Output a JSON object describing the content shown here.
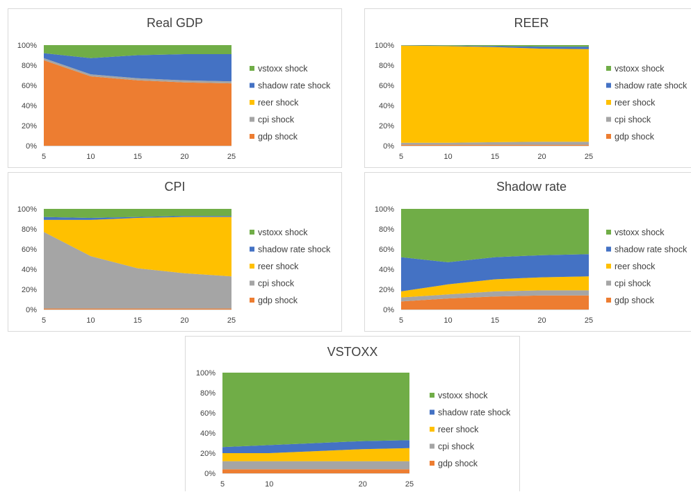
{
  "legend_order": [
    "vstoxx shock",
    "shadow rate shock",
    "reer shock",
    "cpi shock",
    "gdp shock"
  ],
  "colors": {
    "gdp shock": "#ed7d31",
    "cpi shock": "#a5a5a5",
    "reer shock": "#ffc000",
    "shadow rate shock": "#4472c4",
    "vstoxx shock": "#70ad47"
  },
  "chart_data": [
    {
      "type": "area",
      "stacked": "percent",
      "title": "Real GDP",
      "x": [
        5,
        10,
        15,
        20,
        25
      ],
      "xticks": [
        "5",
        "10",
        "15",
        "20",
        "25"
      ],
      "yticks": [
        "0%",
        "20%",
        "40%",
        "60%",
        "80%",
        "100%"
      ],
      "ylim": [
        0,
        100
      ],
      "legend_position": "right",
      "series": [
        {
          "name": "gdp shock",
          "values": [
            85,
            69,
            65,
            63,
            62
          ]
        },
        {
          "name": "cpi shock",
          "values": [
            2,
            2,
            2,
            2,
            2
          ]
        },
        {
          "name": "reer shock",
          "values": [
            0,
            0,
            0,
            0,
            0
          ]
        },
        {
          "name": "shadow rate shock",
          "values": [
            5,
            16,
            23,
            26,
            27
          ]
        },
        {
          "name": "vstoxx shock",
          "values": [
            8,
            13,
            10,
            9,
            9
          ]
        }
      ]
    },
    {
      "type": "area",
      "stacked": "percent",
      "title": "REER",
      "x": [
        5,
        10,
        15,
        20,
        25
      ],
      "xticks": [
        "5",
        "10",
        "15",
        "20",
        "25"
      ],
      "yticks": [
        "0%",
        "20%",
        "40%",
        "60%",
        "80%",
        "100%"
      ],
      "ylim": [
        0,
        100
      ],
      "legend_position": "right",
      "series": [
        {
          "name": "gdp shock",
          "values": [
            1,
            1,
            1,
            1,
            1
          ]
        },
        {
          "name": "cpi shock",
          "values": [
            2,
            2,
            2.5,
            3,
            3
          ]
        },
        {
          "name": "reer shock",
          "values": [
            96.5,
            96,
            94.5,
            92.5,
            92
          ]
        },
        {
          "name": "shadow rate shock",
          "values": [
            0.3,
            0.5,
            1,
            2,
            2.5
          ]
        },
        {
          "name": "vstoxx shock",
          "values": [
            0.2,
            0.5,
            1,
            1.5,
            1.5
          ]
        }
      ]
    },
    {
      "type": "area",
      "stacked": "percent",
      "title": "CPI",
      "x": [
        5,
        10,
        15,
        20,
        25
      ],
      "xticks": [
        "5",
        "10",
        "15",
        "20",
        "25"
      ],
      "yticks": [
        "0%",
        "20%",
        "40%",
        "60%",
        "80%",
        "100%"
      ],
      "ylim": [
        0,
        100
      ],
      "legend_position": "right",
      "series": [
        {
          "name": "gdp shock",
          "values": [
            1,
            1,
            1,
            1,
            1
          ]
        },
        {
          "name": "cpi shock",
          "values": [
            76,
            52,
            40,
            35,
            32
          ]
        },
        {
          "name": "reer shock",
          "values": [
            12,
            36,
            50,
            56,
            59
          ]
        },
        {
          "name": "shadow rate shock",
          "values": [
            3,
            2,
            1,
            1,
            1
          ]
        },
        {
          "name": "vstoxx shock",
          "values": [
            8,
            9,
            8,
            7,
            7
          ]
        }
      ]
    },
    {
      "type": "area",
      "stacked": "percent",
      "title": "Shadow rate",
      "x": [
        5,
        10,
        15,
        20,
        25
      ],
      "xticks": [
        "5",
        "10",
        "15",
        "20",
        "25"
      ],
      "yticks": [
        "0%",
        "20%",
        "40%",
        "60%",
        "80%",
        "100%"
      ],
      "ylim": [
        0,
        100
      ],
      "legend_position": "right",
      "series": [
        {
          "name": "gdp shock",
          "values": [
            8,
            11,
            13,
            14,
            14
          ]
        },
        {
          "name": "cpi shock",
          "values": [
            4,
            4,
            5,
            5,
            5
          ]
        },
        {
          "name": "reer shock",
          "values": [
            6,
            10,
            12,
            13,
            14
          ]
        },
        {
          "name": "shadow rate shock",
          "values": [
            34,
            22,
            22,
            22,
            22
          ]
        },
        {
          "name": "vstoxx shock",
          "values": [
            48,
            53,
            48,
            46,
            45
          ]
        }
      ]
    },
    {
      "type": "area",
      "stacked": "percent",
      "title": "VSTOXX",
      "x": [
        5,
        10,
        15,
        20,
        25
      ],
      "xticks": [
        "5",
        "10",
        "20",
        "25"
      ],
      "yticks": [
        "0%",
        "20%",
        "40%",
        "60%",
        "80%",
        "100%"
      ],
      "ylim": [
        0,
        100
      ],
      "legend_position": "right",
      "series": [
        {
          "name": "gdp shock",
          "values": [
            4,
            4,
            4,
            4,
            4
          ]
        },
        {
          "name": "cpi shock",
          "values": [
            8,
            8,
            8,
            8,
            8
          ]
        },
        {
          "name": "reer shock",
          "values": [
            8,
            8,
            10,
            12,
            13
          ]
        },
        {
          "name": "shadow rate shock",
          "values": [
            6,
            8,
            8,
            8,
            8
          ]
        },
        {
          "name": "vstoxx shock",
          "values": [
            74,
            72,
            70,
            68,
            67
          ]
        }
      ]
    }
  ]
}
